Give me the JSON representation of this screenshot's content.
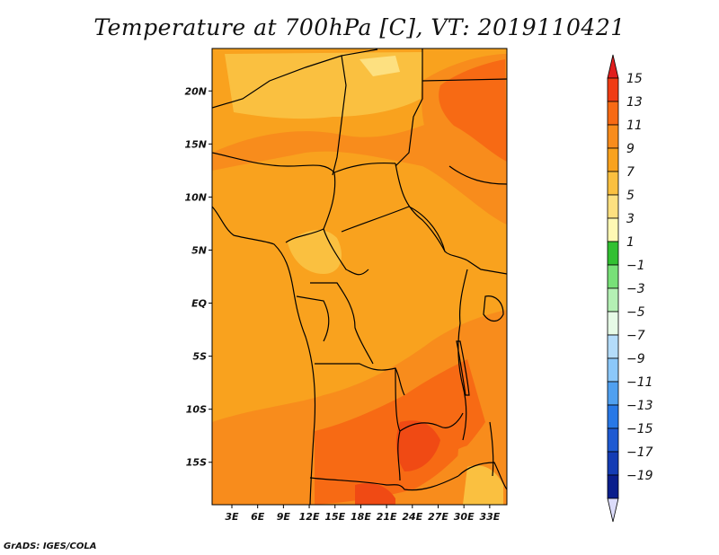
{
  "title": "Temperature at 700hPa [C], VT: 2019110421",
  "credit": "GrADS: IGES/COLA",
  "map": {
    "lat_range": [
      -19,
      24
    ],
    "lon_range": [
      0.7,
      35
    ],
    "lat_ticks": [
      {
        "lat": 20,
        "label": "20N"
      },
      {
        "lat": 15,
        "label": "15N"
      },
      {
        "lat": 10,
        "label": "10N"
      },
      {
        "lat": 5,
        "label": "5N"
      },
      {
        "lat": 0,
        "label": "EQ"
      },
      {
        "lat": -5,
        "label": "5S"
      },
      {
        "lat": -10,
        "label": "10S"
      },
      {
        "lat": -15,
        "label": "15S"
      }
    ],
    "lon_ticks": [
      {
        "lon": 3,
        "label": "3E"
      },
      {
        "lon": 6,
        "label": "6E"
      },
      {
        "lon": 9,
        "label": "9E"
      },
      {
        "lon": 12,
        "label": "12E"
      },
      {
        "lon": 15,
        "label": "15E"
      },
      {
        "lon": 18,
        "label": "18E"
      },
      {
        "lon": 21,
        "label": "21E"
      },
      {
        "lon": 24,
        "label": "24E"
      },
      {
        "lon": 27,
        "label": "27E"
      },
      {
        "lon": 30,
        "label": "30E"
      },
      {
        "lon": 33,
        "label": "33E"
      }
    ]
  },
  "colorbar": {
    "levels": [
      {
        "label": "15",
        "color": "#f03c14"
      },
      {
        "label": "13",
        "color": "#f76a14"
      },
      {
        "label": "11",
        "color": "#f88c1c"
      },
      {
        "label": "9",
        "color": "#f9a21e"
      },
      {
        "label": "7",
        "color": "#fac040"
      },
      {
        "label": "5",
        "color": "#fde080"
      },
      {
        "label": "3",
        "color": "#fef8b4"
      },
      {
        "label": "1",
        "color": "#32c032"
      },
      {
        "label": "−1",
        "color": "#78e078"
      },
      {
        "label": "−3",
        "color": "#b4f0b4"
      },
      {
        "label": "−5",
        "color": "#e6fae6"
      },
      {
        "label": "−7",
        "color": "#b4dcfa"
      },
      {
        "label": "−9",
        "color": "#8cc8fa"
      },
      {
        "label": "−11",
        "color": "#50a0f0"
      },
      {
        "label": "−13",
        "color": "#2878e6"
      },
      {
        "label": "−15",
        "color": "#1e5ad2"
      },
      {
        "label": "−17",
        "color": "#143cb4"
      },
      {
        "label": "−19",
        "color": "#0a1e8c"
      }
    ],
    "top_arrow_color": "#e01e1e",
    "bottom_arrow_color": "#dcdcfa"
  },
  "colors": {
    "base_field": "#f9a21e",
    "warm_field": "#f88c1c",
    "hot_field": "#f76a14",
    "hottest_field": "#f04a14",
    "cool_field": "#fac040",
    "coolest_field": "#fde080"
  }
}
